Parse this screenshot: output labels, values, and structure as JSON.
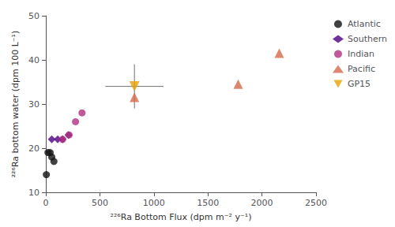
{
  "chart_data": {
    "type": "scatter",
    "xlabel": "²²⁶Ra Bottom Flux (dpm m⁻² y⁻¹)",
    "ylabel": "²²⁶Ra bottom water (dpm 100 L⁻¹)",
    "xlim": [
      0,
      2500
    ],
    "ylim": [
      10,
      50
    ],
    "xticks": [
      0,
      500,
      1000,
      1500,
      2000,
      2500
    ],
    "yticks": [
      10,
      20,
      30,
      40,
      50
    ],
    "grid": false,
    "legend": "right",
    "series": [
      {
        "name": "Atlantic",
        "color": "#111111",
        "marker": "circle",
        "x": [
          5,
          20,
          40,
          55,
          75
        ],
        "values": [
          14,
          19,
          19,
          18,
          17
        ]
      },
      {
        "name": "Southern",
        "color": "#4b0082",
        "marker": "diamond",
        "x": [
          55,
          110,
          155,
          210
        ],
        "values": [
          22,
          22,
          22,
          23
        ]
      },
      {
        "name": "Indian",
        "color": "#b03080",
        "marker": "circle",
        "x": [
          155,
          215,
          275,
          335
        ],
        "values": [
          22,
          23,
          26,
          28
        ]
      },
      {
        "name": "Pacific",
        "color": "#d4694a",
        "marker": "triangle-up",
        "x": [
          820,
          1780,
          2160
        ],
        "values": [
          31.5,
          34.5,
          41.5
        ]
      },
      {
        "name": "GP15",
        "color": "#e8a000",
        "marker": "triangle-down",
        "x": [
          820
        ],
        "values": [
          34
        ],
        "errors": {
          "x": [
            270
          ],
          "y": [
            5
          ],
          "color": "#707070"
        }
      }
    ]
  }
}
